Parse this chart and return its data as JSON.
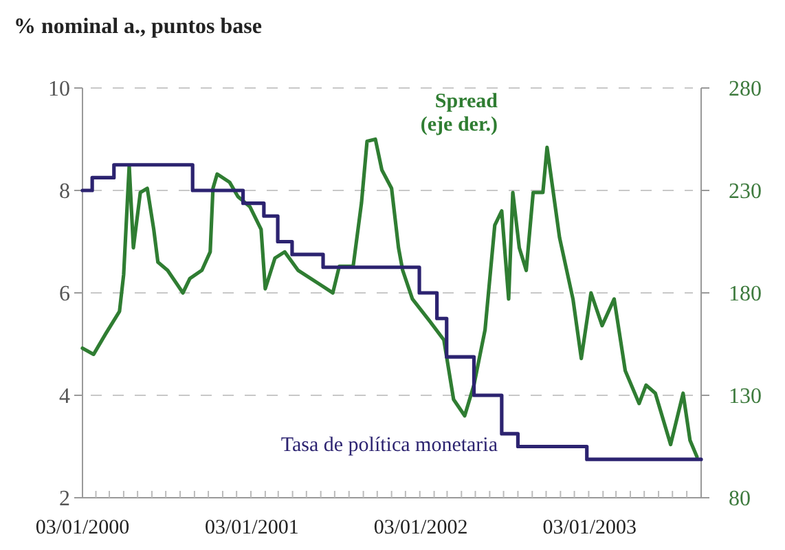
{
  "chart_data": {
    "type": "line",
    "title": "% nominal a., puntos base",
    "xlim": [
      "2000-01-03",
      "2003-09-01"
    ],
    "xticks": [
      {
        "value": "2000-01-03",
        "label": "03/01/2000"
      },
      {
        "value": "2001-01-03",
        "label": "03/01/2001"
      },
      {
        "value": "2002-01-03",
        "label": "03/01/2002"
      },
      {
        "value": "2003-01-03",
        "label": "03/01/2003"
      }
    ],
    "ylim": [
      2,
      10
    ],
    "yticks": [
      2,
      4,
      6,
      8,
      10
    ],
    "y2lim": [
      80,
      280
    ],
    "y2ticks": [
      80,
      130,
      180,
      230,
      280
    ],
    "grid": "y",
    "legend": false,
    "line_style": "solid",
    "marker": "none",
    "series": [
      {
        "name": "Tasa de política monetaria",
        "type": "step",
        "color": "#2c2370",
        "x": [
          "2000-01-03",
          "2000-01-24",
          "2000-03-11",
          "2000-08-28",
          "2000-12-15",
          "2001-01-29",
          "2001-02-28",
          "2001-03-31",
          "2001-06-06",
          "2001-12-31",
          "2002-02-07",
          "2002-02-28",
          "2002-04-28",
          "2002-06-27",
          "2002-08-01",
          "2002-12-28",
          "2003-09-01"
        ],
        "values": [
          8,
          8.25,
          8.5,
          8,
          7.75,
          7.5,
          7,
          6.75,
          6.5,
          6,
          5.5,
          4.75,
          4,
          3.25,
          3,
          2.75,
          2.75
        ]
      },
      {
        "name": "Spread\n(eje der.)",
        "axis": "y2",
        "color": "#2f7d32",
        "x": [
          "2000-01-03",
          "2000-01-27",
          "2000-02-22",
          "2000-03-23",
          "2000-04-01",
          "2000-04-10",
          "2000-04-13",
          "2000-04-22",
          "2000-05-07",
          "2000-05-22",
          "2000-06-05",
          "2000-06-14",
          "2000-07-05",
          "2000-08-07",
          "2000-08-22",
          "2000-09-17",
          "2000-10-05",
          "2000-10-11",
          "2000-10-20",
          "2000-11-16",
          "2000-12-04",
          "2000-12-30",
          "2001-01-23",
          "2001-02-01",
          "2001-02-22",
          "2001-03-15",
          "2001-04-13",
          "2001-05-31",
          "2001-06-27",
          "2001-07-11",
          "2001-08-10",
          "2001-08-28",
          "2001-09-09",
          "2001-09-27",
          "2001-10-11",
          "2001-11-01",
          "2001-11-16",
          "2001-11-25",
          "2001-12-16",
          "2002-01-23",
          "2002-02-22",
          "2002-03-15",
          "2002-04-08",
          "2002-04-28",
          "2002-05-22",
          "2002-06-12",
          "2002-06-27",
          "2002-07-12",
          "2002-07-21",
          "2002-08-04",
          "2002-08-19",
          "2002-09-03",
          "2002-09-24",
          "2002-10-03",
          "2002-10-30",
          "2002-11-28",
          "2002-12-16",
          "2003-01-06",
          "2003-01-30",
          "2003-02-25",
          "2003-03-21",
          "2003-04-20",
          "2003-05-05",
          "2003-05-25",
          "2003-06-27",
          "2003-07-24",
          "2003-08-08",
          "2003-08-23"
        ],
        "values": [
          153,
          150,
          160,
          171,
          189,
          229,
          242,
          202,
          229,
          231,
          211,
          195,
          191,
          180,
          187,
          191,
          200,
          231,
          238,
          234,
          227,
          222,
          211,
          182,
          197,
          200,
          191,
          184,
          180,
          193,
          193,
          224,
          254,
          255,
          240,
          231,
          202,
          191,
          177,
          166,
          157,
          128,
          120,
          135,
          162,
          213,
          220,
          177,
          229,
          202,
          191,
          229,
          229,
          251,
          207,
          177,
          148,
          180,
          164,
          177,
          142,
          126,
          135,
          131,
          106,
          131,
          108,
          100
        ]
      }
    ]
  }
}
